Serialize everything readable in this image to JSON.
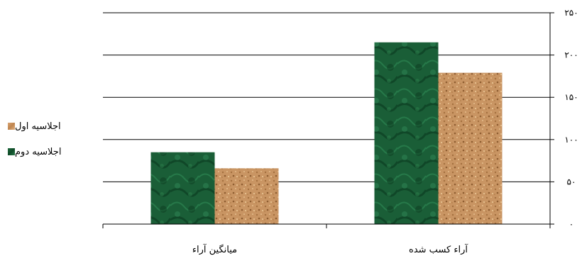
{
  "chart_data": {
    "type": "bar",
    "categories": [
      "میانگین آراء",
      "آراء کسب شده"
    ],
    "series": [
      {
        "name": "اجلاسیه دوم",
        "values": [
          85,
          215
        ],
        "color": "#1f6b3e"
      },
      {
        "name": "اجلاسیه اول",
        "values": [
          66,
          179
        ],
        "color": "#c89060"
      }
    ],
    "ylim": [
      0,
      250
    ],
    "y_ticks": [
      "۰",
      "۵۰",
      "۱۰۰",
      "۱۵۰",
      "۲۰۰",
      "۲۵۰"
    ],
    "y_tick_values": [
      0,
      50,
      100,
      150,
      200,
      250
    ],
    "grid": true,
    "legend": "left",
    "y_axis_side": "right"
  }
}
